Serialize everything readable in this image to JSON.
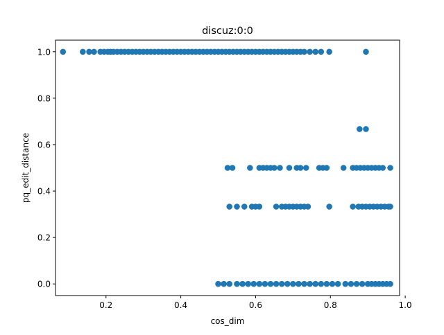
{
  "chart_data": {
    "type": "scatter",
    "title": "discuz:0:0",
    "xlabel": "cos_dim",
    "ylabel": "pq_edit_distance",
    "xlim": [
      0.065,
      0.985
    ],
    "ylim": [
      -0.05,
      1.05
    ],
    "x_ticks": [
      0.2,
      0.4,
      0.6,
      0.8,
      1.0
    ],
    "x_tick_labels": [
      "0.2",
      "0.4",
      "0.6",
      "0.8",
      "1.0"
    ],
    "y_ticks": [
      0.0,
      0.2,
      0.4,
      0.6,
      0.8,
      1.0
    ],
    "y_tick_labels": [
      "0.0",
      "0.2",
      "0.4",
      "0.6",
      "0.8",
      "1.0"
    ],
    "grid": false,
    "legend": "none",
    "marker_color": "#1f77b4",
    "series": [
      {
        "points": [
          [
            0.085,
            1.0
          ],
          [
            0.138,
            1.0
          ],
          [
            0.155,
            1.0
          ],
          [
            0.168,
            1.0
          ],
          [
            0.185,
            1.0
          ],
          [
            0.195,
            1.0
          ],
          [
            0.205,
            1.0
          ],
          [
            0.212,
            1.0
          ],
          [
            0.22,
            1.0
          ],
          [
            0.23,
            1.0
          ],
          [
            0.24,
            1.0
          ],
          [
            0.25,
            1.0
          ],
          [
            0.26,
            1.0
          ],
          [
            0.27,
            1.0
          ],
          [
            0.28,
            1.0
          ],
          [
            0.29,
            1.0
          ],
          [
            0.3,
            1.0
          ],
          [
            0.31,
            1.0
          ],
          [
            0.32,
            1.0
          ],
          [
            0.33,
            1.0
          ],
          [
            0.34,
            1.0
          ],
          [
            0.35,
            1.0
          ],
          [
            0.36,
            1.0
          ],
          [
            0.37,
            1.0
          ],
          [
            0.38,
            1.0
          ],
          [
            0.39,
            1.0
          ],
          [
            0.4,
            1.0
          ],
          [
            0.41,
            1.0
          ],
          [
            0.42,
            1.0
          ],
          [
            0.43,
            1.0
          ],
          [
            0.44,
            1.0
          ],
          [
            0.45,
            1.0
          ],
          [
            0.46,
            1.0
          ],
          [
            0.47,
            1.0
          ],
          [
            0.48,
            1.0
          ],
          [
            0.49,
            1.0
          ],
          [
            0.5,
            1.0
          ],
          [
            0.51,
            1.0
          ],
          [
            0.52,
            1.0
          ],
          [
            0.53,
            1.0
          ],
          [
            0.54,
            1.0
          ],
          [
            0.55,
            1.0
          ],
          [
            0.56,
            1.0
          ],
          [
            0.57,
            1.0
          ],
          [
            0.58,
            1.0
          ],
          [
            0.59,
            1.0
          ],
          [
            0.6,
            1.0
          ],
          [
            0.61,
            1.0
          ],
          [
            0.62,
            1.0
          ],
          [
            0.63,
            1.0
          ],
          [
            0.64,
            1.0
          ],
          [
            0.65,
            1.0
          ],
          [
            0.66,
            1.0
          ],
          [
            0.67,
            1.0
          ],
          [
            0.68,
            1.0
          ],
          [
            0.69,
            1.0
          ],
          [
            0.7,
            1.0
          ],
          [
            0.71,
            1.0
          ],
          [
            0.72,
            1.0
          ],
          [
            0.73,
            1.0
          ],
          [
            0.745,
            1.0
          ],
          [
            0.76,
            1.0
          ],
          [
            0.775,
            1.0
          ],
          [
            0.797,
            1.0
          ],
          [
            0.895,
            1.0
          ],
          [
            0.878,
            0.667
          ],
          [
            0.895,
            0.667
          ],
          [
            0.525,
            0.5
          ],
          [
            0.538,
            0.5
          ],
          [
            0.585,
            0.5
          ],
          [
            0.61,
            0.5
          ],
          [
            0.62,
            0.5
          ],
          [
            0.63,
            0.5
          ],
          [
            0.64,
            0.5
          ],
          [
            0.65,
            0.5
          ],
          [
            0.665,
            0.5
          ],
          [
            0.69,
            0.5
          ],
          [
            0.71,
            0.5
          ],
          [
            0.72,
            0.5
          ],
          [
            0.735,
            0.5
          ],
          [
            0.77,
            0.5
          ],
          [
            0.78,
            0.5
          ],
          [
            0.79,
            0.5
          ],
          [
            0.835,
            0.5
          ],
          [
            0.86,
            0.5
          ],
          [
            0.87,
            0.5
          ],
          [
            0.88,
            0.5
          ],
          [
            0.89,
            0.5
          ],
          [
            0.9,
            0.5
          ],
          [
            0.91,
            0.5
          ],
          [
            0.92,
            0.5
          ],
          [
            0.93,
            0.5
          ],
          [
            0.94,
            0.5
          ],
          [
            0.96,
            0.5
          ],
          [
            0.53,
            0.333
          ],
          [
            0.55,
            0.333
          ],
          [
            0.57,
            0.333
          ],
          [
            0.59,
            0.333
          ],
          [
            0.6,
            0.333
          ],
          [
            0.61,
            0.333
          ],
          [
            0.655,
            0.333
          ],
          [
            0.67,
            0.333
          ],
          [
            0.68,
            0.333
          ],
          [
            0.69,
            0.333
          ],
          [
            0.7,
            0.333
          ],
          [
            0.71,
            0.333
          ],
          [
            0.72,
            0.333
          ],
          [
            0.73,
            0.333
          ],
          [
            0.74,
            0.333
          ],
          [
            0.797,
            0.333
          ],
          [
            0.86,
            0.333
          ],
          [
            0.875,
            0.333
          ],
          [
            0.885,
            0.333
          ],
          [
            0.895,
            0.333
          ],
          [
            0.905,
            0.333
          ],
          [
            0.915,
            0.333
          ],
          [
            0.925,
            0.333
          ],
          [
            0.935,
            0.333
          ],
          [
            0.945,
            0.333
          ],
          [
            0.955,
            0.333
          ],
          [
            0.96,
            0.333
          ],
          [
            0.5,
            0.0
          ],
          [
            0.515,
            0.0
          ],
          [
            0.53,
            0.0
          ],
          [
            0.55,
            0.0
          ],
          [
            0.565,
            0.0
          ],
          [
            0.58,
            0.0
          ],
          [
            0.595,
            0.0
          ],
          [
            0.61,
            0.0
          ],
          [
            0.625,
            0.0
          ],
          [
            0.64,
            0.0
          ],
          [
            0.655,
            0.0
          ],
          [
            0.67,
            0.0
          ],
          [
            0.685,
            0.0
          ],
          [
            0.7,
            0.0
          ],
          [
            0.715,
            0.0
          ],
          [
            0.73,
            0.0
          ],
          [
            0.745,
            0.0
          ],
          [
            0.76,
            0.0
          ],
          [
            0.775,
            0.0
          ],
          [
            0.79,
            0.0
          ],
          [
            0.805,
            0.0
          ],
          [
            0.82,
            0.0
          ],
          [
            0.84,
            0.0
          ],
          [
            0.855,
            0.0
          ],
          [
            0.87,
            0.0
          ],
          [
            0.885,
            0.0
          ],
          [
            0.9,
            0.0
          ],
          [
            0.91,
            0.0
          ],
          [
            0.92,
            0.0
          ],
          [
            0.93,
            0.0
          ],
          [
            0.94,
            0.0
          ],
          [
            0.95,
            0.0
          ],
          [
            0.96,
            0.0
          ]
        ]
      }
    ]
  }
}
